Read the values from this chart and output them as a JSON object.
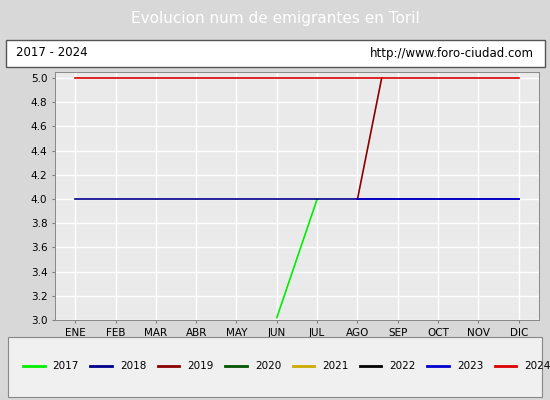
{
  "title": "Evolucion num de emigrantes en Toril",
  "title_bg_color": "#4a7fd4",
  "title_text_color": "white",
  "subtitle_left": "2017 - 2024",
  "subtitle_right": "http://www.foro-ciudad.com",
  "ylim": [
    3.0,
    5.05
  ],
  "yticks": [
    3.0,
    3.2,
    3.4,
    3.6,
    3.8,
    4.0,
    4.2,
    4.4,
    4.6,
    4.8,
    5.0
  ],
  "months": [
    "ENE",
    "FEB",
    "MAR",
    "ABR",
    "MAY",
    "JUN",
    "JUL",
    "AGO",
    "SEP",
    "OCT",
    "NOV",
    "DIC"
  ],
  "series": [
    {
      "year": "2017",
      "color": "#00ee00",
      "data": [
        [
          6.0,
          3.02
        ],
        [
          7.0,
          4.0
        ]
      ]
    },
    {
      "year": "2018",
      "color": "#00008b",
      "data": [
        [
          1,
          4.0
        ],
        [
          12,
          4.0
        ]
      ]
    },
    {
      "year": "2019",
      "color": "#8b0000",
      "data": [
        [
          8.0,
          4.0
        ],
        [
          8.6,
          5.0
        ]
      ]
    },
    {
      "year": "2020",
      "color": "#005500",
      "data": []
    },
    {
      "year": "2021",
      "color": "#ccaa00",
      "data": []
    },
    {
      "year": "2022",
      "color": "#000000",
      "data": []
    },
    {
      "year": "2023",
      "color": "#0000cc",
      "data": [
        [
          8.0,
          4.0
        ],
        [
          12,
          4.0
        ]
      ]
    },
    {
      "year": "2024",
      "color": "#dd0000",
      "data": [
        [
          1,
          5.0
        ],
        [
          12,
          5.0
        ]
      ]
    }
  ],
  "bg_color": "#d8d8d8",
  "plot_bg_color": "#eaeaea",
  "grid_color": "#ffffff",
  "legend_bg": "#f0f0f0"
}
